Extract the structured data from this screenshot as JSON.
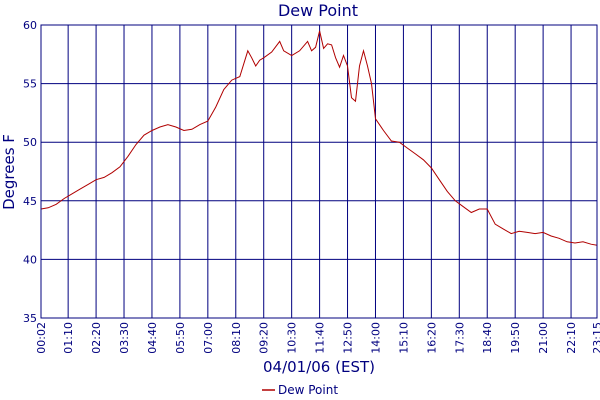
{
  "colors": {
    "axis": "#00007f",
    "grid": "#00007f",
    "series": "#b00000",
    "text": "#00007f"
  },
  "chart_data": {
    "type": "line",
    "title": "Dew Point",
    "xlabel": "04/01/06 (EST)",
    "ylabel": "Degrees F",
    "ylim": [
      35,
      60
    ],
    "yticks": [
      35,
      40,
      45,
      50,
      55,
      60
    ],
    "xlim": [
      "00:02",
      "23:15"
    ],
    "xticks": [
      "00:02",
      "01:10",
      "02:20",
      "03:30",
      "04:40",
      "05:50",
      "07:00",
      "08:10",
      "09:20",
      "10:30",
      "11:40",
      "12:50",
      "14:00",
      "15:10",
      "16:20",
      "17:30",
      "18:40",
      "19:50",
      "21:00",
      "22:10",
      "23:15"
    ],
    "grid": true,
    "legend": {
      "position": "bottom-center",
      "entries": [
        "Dew Point"
      ]
    },
    "series": [
      {
        "name": "Dew Point",
        "x": [
          "00:02",
          "00:20",
          "00:40",
          "01:00",
          "01:20",
          "01:40",
          "02:00",
          "02:20",
          "02:40",
          "03:00",
          "03:20",
          "03:40",
          "04:00",
          "04:20",
          "04:40",
          "05:00",
          "05:20",
          "05:40",
          "06:00",
          "06:20",
          "06:40",
          "07:00",
          "07:20",
          "07:40",
          "08:00",
          "08:20",
          "08:40",
          "08:50",
          "09:00",
          "09:10",
          "09:20",
          "09:40",
          "10:00",
          "10:10",
          "10:30",
          "10:50",
          "11:10",
          "11:20",
          "11:30",
          "11:40",
          "11:50",
          "12:00",
          "12:10",
          "12:20",
          "12:30",
          "12:40",
          "12:50",
          "13:00",
          "13:10",
          "13:20",
          "13:30",
          "13:40",
          "13:50",
          "14:00",
          "14:20",
          "14:40",
          "15:00",
          "15:20",
          "15:40",
          "16:00",
          "16:20",
          "16:40",
          "17:00",
          "17:20",
          "17:40",
          "18:00",
          "18:20",
          "18:40",
          "19:00",
          "19:20",
          "19:40",
          "20:00",
          "20:20",
          "20:40",
          "21:00",
          "21:20",
          "21:40",
          "22:00",
          "22:20",
          "22:40",
          "23:00",
          "23:15"
        ],
        "y": [
          44.3,
          44.4,
          44.7,
          45.2,
          45.6,
          46.0,
          46.4,
          46.8,
          47.0,
          47.4,
          47.9,
          48.8,
          49.8,
          50.6,
          51.0,
          51.3,
          51.5,
          51.3,
          51.0,
          51.1,
          51.5,
          51.8,
          53.0,
          54.5,
          55.3,
          55.6,
          57.8,
          57.2,
          56.5,
          57.0,
          57.2,
          57.7,
          58.6,
          57.8,
          57.4,
          57.8,
          58.6,
          57.8,
          58.1,
          59.5,
          58.0,
          58.4,
          58.3,
          57.2,
          56.4,
          57.4,
          56.5,
          53.8,
          53.5,
          56.5,
          57.8,
          56.5,
          55.0,
          52.0,
          51.0,
          50.1,
          50.0,
          49.5,
          49.0,
          48.5,
          47.8,
          46.8,
          45.8,
          45.0,
          44.5,
          44.0,
          44.3,
          44.3,
          43.0,
          42.6,
          42.2,
          42.4,
          42.3,
          42.2,
          42.3,
          42.0,
          41.8,
          41.5,
          41.4,
          41.5,
          41.3,
          41.2
        ]
      }
    ]
  }
}
